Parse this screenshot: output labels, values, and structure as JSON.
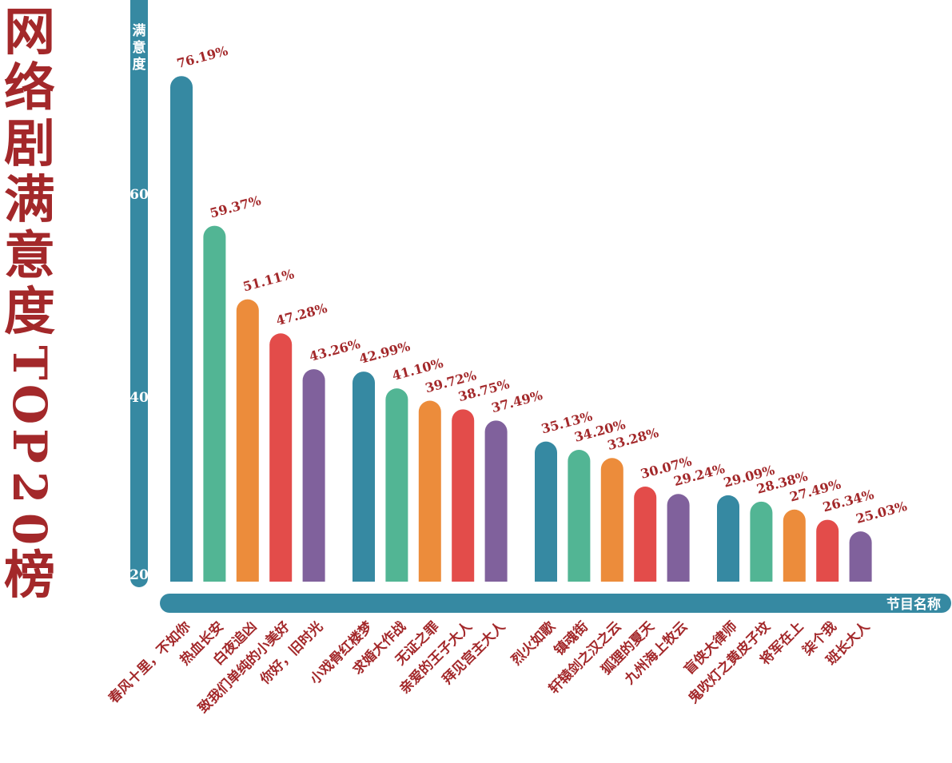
{
  "chart_data": {
    "type": "bar",
    "title": "网络剧满意度TOP20榜",
    "xlabel": "节目名称",
    "ylabel": "满意度",
    "yticks": [
      20,
      40,
      60
    ],
    "ylim": [
      20,
      80
    ],
    "grid": false,
    "legend": "none",
    "value_suffix": "%",
    "palette": [
      "#3689a2",
      "#52b594",
      "#ec8c3b",
      "#e34c4a",
      "#80619c"
    ],
    "group_size": 5,
    "categories": [
      "春风十里，不如你",
      "热血长安",
      "白夜追凶",
      "致我们单纯的小美好",
      "你好，旧时光",
      "小戏骨红楼梦",
      "求婚大作战",
      "无证之罪",
      "亲爱的王子大人",
      "拜见宫主大人",
      "烈火如歌",
      "镇魂街",
      "轩辕剑之汉之云",
      "狐狸的夏天",
      "九州海上牧云",
      "盲侠大律师",
      "鬼吹灯之黄皮子坟",
      "将军在上",
      "柒个我",
      "班长大人"
    ],
    "values": [
      76.19,
      59.37,
      51.11,
      47.28,
      43.26,
      42.99,
      41.1,
      39.72,
      38.75,
      37.49,
      35.13,
      34.2,
      33.28,
      30.07,
      29.24,
      29.09,
      28.38,
      27.49,
      26.34,
      25.03
    ],
    "labels": [
      "76.19%",
      "59.37%",
      "51.11%",
      "47.28%",
      "43.26%",
      "42.99%",
      "41.10%",
      "39.72%",
      "38.75%",
      "37.49%",
      "35.13%",
      "34.20%",
      "33.28%",
      "30.07%",
      "29.24%",
      "29.09%",
      "28.38%",
      "27.49%",
      "26.34%",
      "25.03%"
    ]
  },
  "axis_color": "#3689a2",
  "text_color": "#a3282a"
}
